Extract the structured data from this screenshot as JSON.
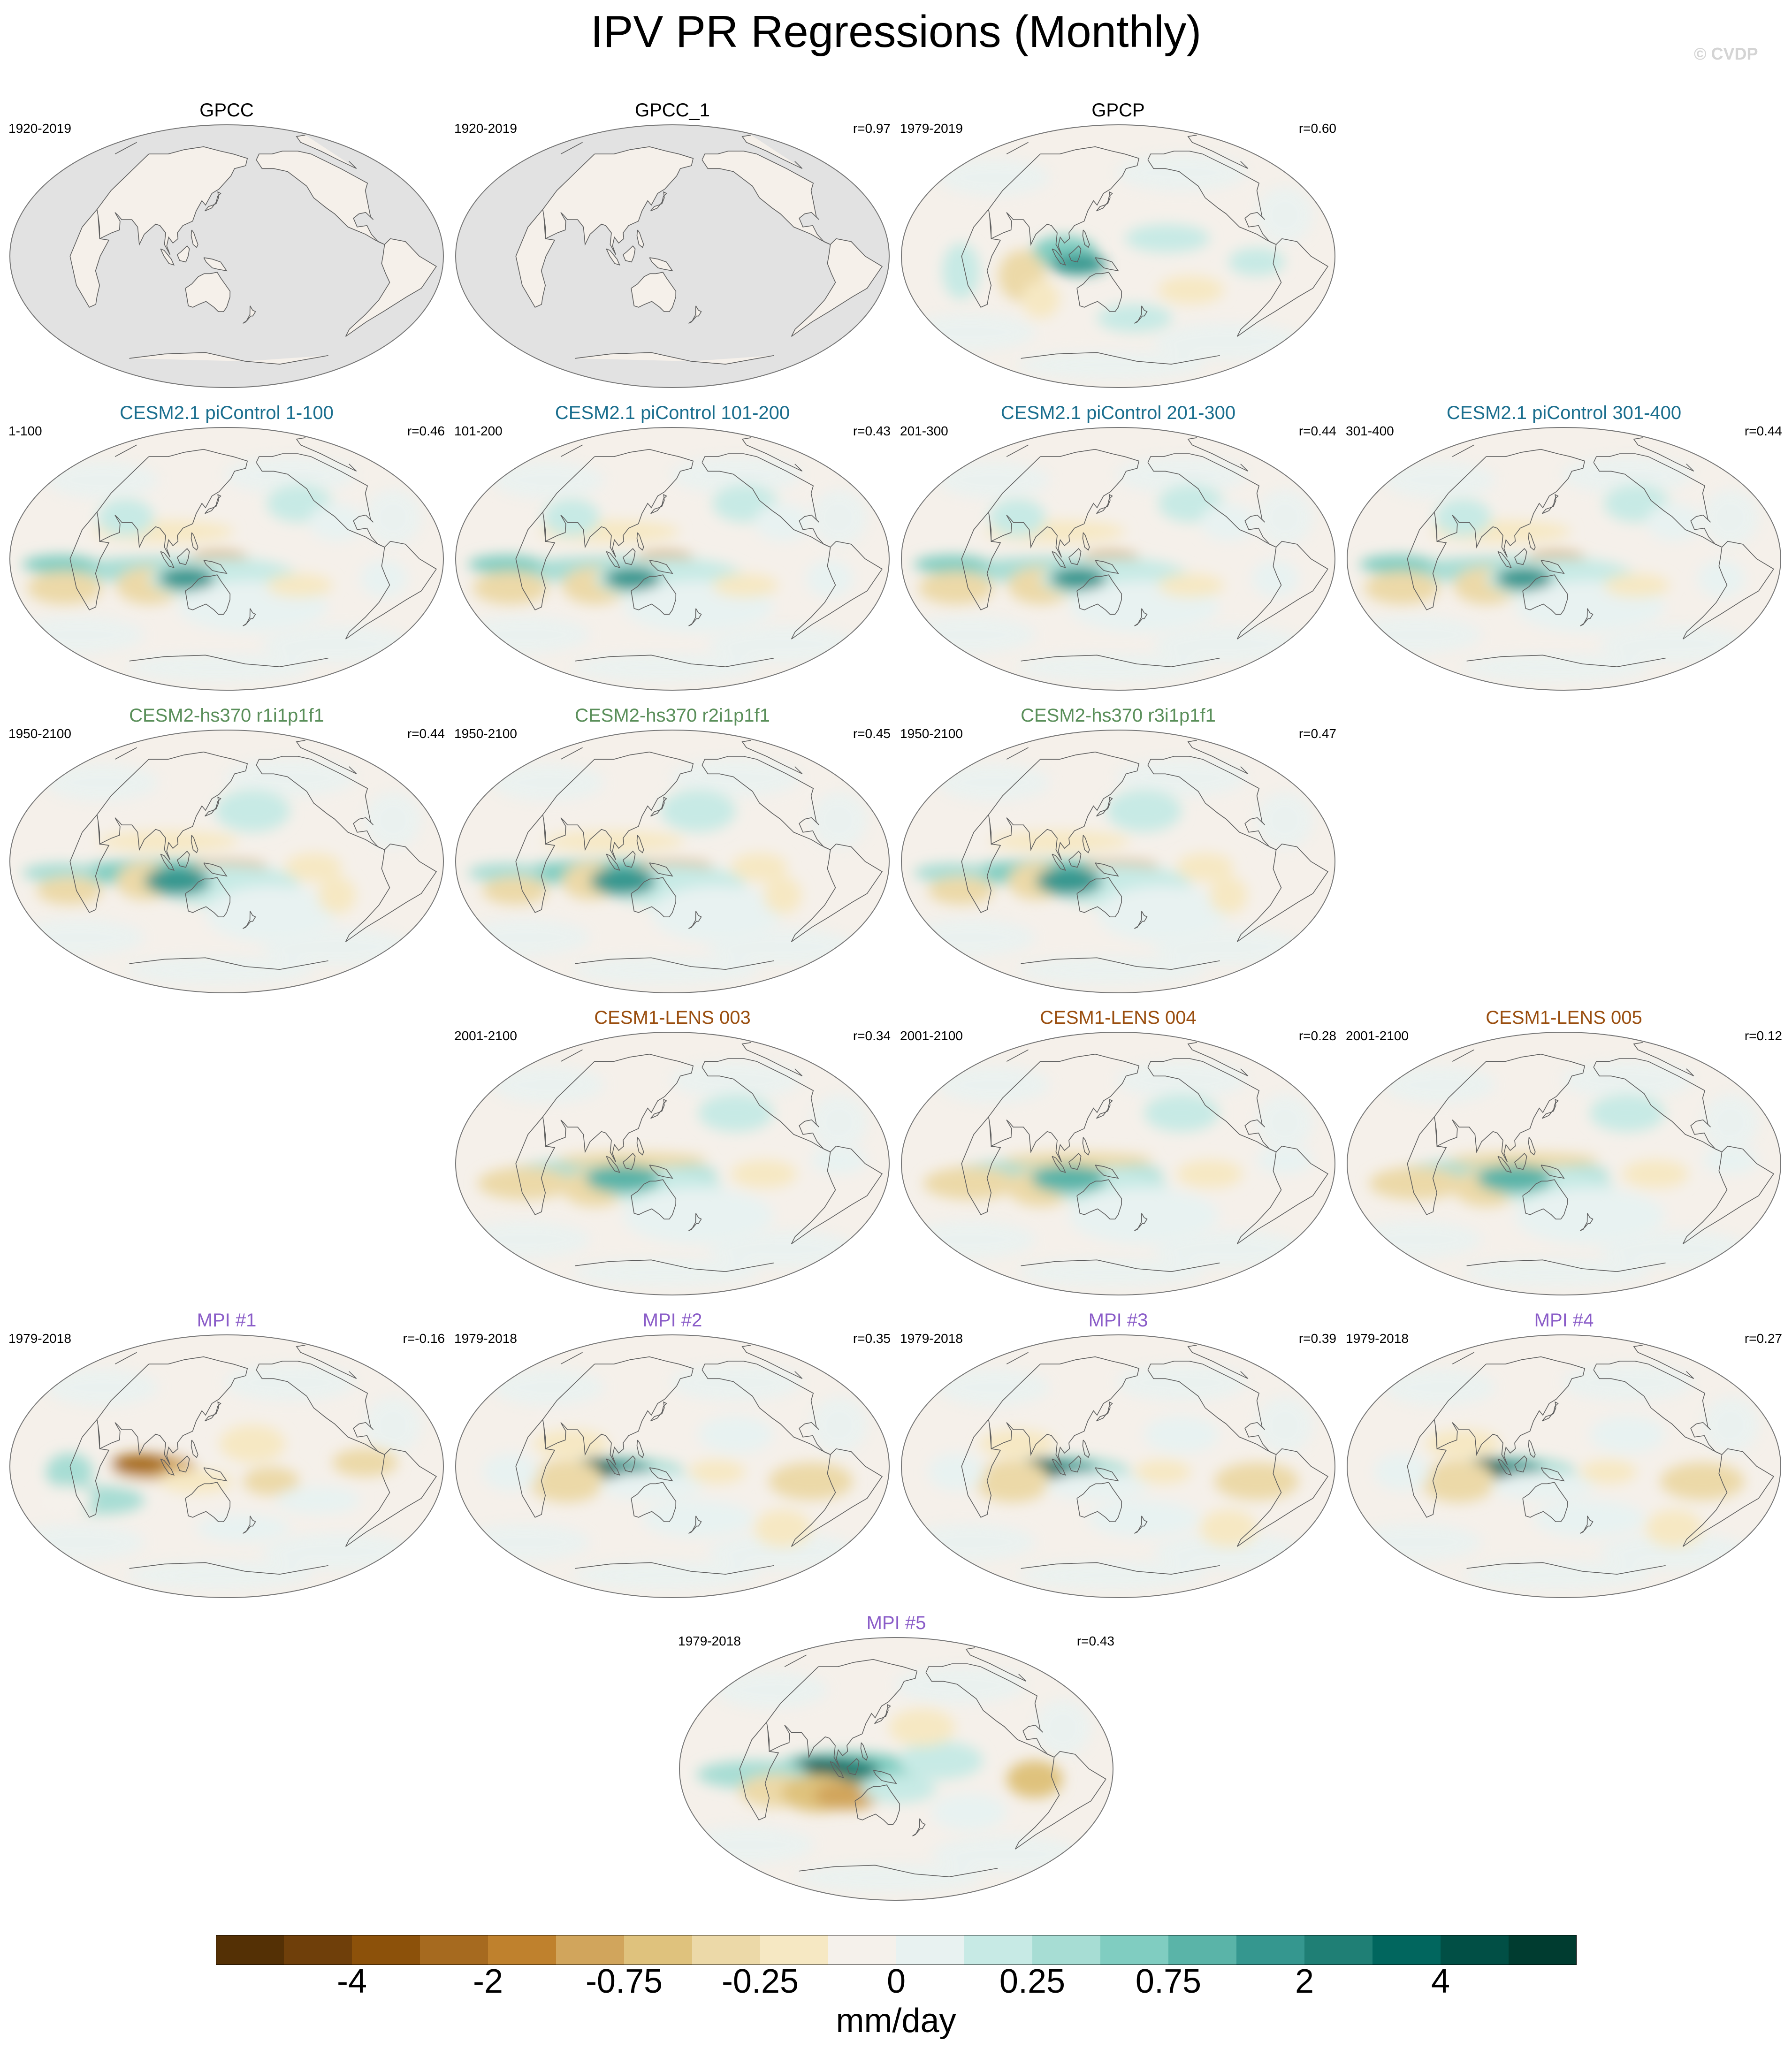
{
  "title": "IPV PR Regressions (Monthly)",
  "copyright": "© CVDP",
  "colors": {
    "land_mask": "#e2e2e2",
    "ocean_base": "#f5f0ea",
    "obs_title": "#000000",
    "cesm21_title": "#1a6e8e",
    "hs370_title": "#5a8f5a",
    "lens_title": "#9a4e0f",
    "mpi_title": "#8a5cc8",
    "coastline": "#5e5e5e"
  },
  "panels": [
    {
      "title": "GPCC",
      "years": "1920-2019",
      "r": "",
      "group": "obs",
      "masked": true,
      "pattern": 0
    },
    {
      "title": "GPCC_1",
      "years": "1920-2019",
      "r": "r=0.97",
      "group": "obs",
      "masked": true,
      "pattern": 0
    },
    {
      "title": "GPCP",
      "years": "1979-2019",
      "r": "r=0.60",
      "group": "obs",
      "masked": false,
      "pattern": 1
    },
    {
      "title": "CESM2.1 piControl 1-100",
      "years": "1-100",
      "r": "r=0.46",
      "group": "cesm21",
      "masked": false,
      "pattern": 2
    },
    {
      "title": "CESM2.1 piControl 101-200",
      "years": "101-200",
      "r": "r=0.43",
      "group": "cesm21",
      "masked": false,
      "pattern": 2
    },
    {
      "title": "CESM2.1 piControl 201-300",
      "years": "201-300",
      "r": "r=0.44",
      "group": "cesm21",
      "masked": false,
      "pattern": 2
    },
    {
      "title": "CESM2.1 piControl 301-400",
      "years": "301-400",
      "r": "r=0.44",
      "group": "cesm21",
      "masked": false,
      "pattern": 2
    },
    {
      "title": "CESM2-hs370 r1i1p1f1",
      "years": "1950-2100",
      "r": "r=0.44",
      "group": "hs370",
      "masked": false,
      "pattern": 3
    },
    {
      "title": "CESM2-hs370 r2i1p1f1",
      "years": "1950-2100",
      "r": "r=0.45",
      "group": "hs370",
      "masked": false,
      "pattern": 3
    },
    {
      "title": "CESM2-hs370 r3i1p1f1",
      "years": "1950-2100",
      "r": "r=0.47",
      "group": "hs370",
      "masked": false,
      "pattern": 3
    },
    {
      "title": "CESM1-LENS 003",
      "years": "2001-2100",
      "r": "r=0.34",
      "group": "lens",
      "masked": false,
      "pattern": 4
    },
    {
      "title": "CESM1-LENS 004",
      "years": "2001-2100",
      "r": "r=0.28",
      "group": "lens",
      "masked": false,
      "pattern": 4
    },
    {
      "title": "CESM1-LENS 005",
      "years": "2001-2100",
      "r": "r=0.12",
      "group": "lens",
      "masked": false,
      "pattern": 4
    },
    {
      "title": "MPI #1",
      "years": "1979-2018",
      "r": "r=-0.16",
      "group": "mpi",
      "masked": false,
      "pattern": 5
    },
    {
      "title": "MPI #2",
      "years": "1979-2018",
      "r": "r=0.35",
      "group": "mpi",
      "masked": false,
      "pattern": 6
    },
    {
      "title": "MPI #3",
      "years": "1979-2018",
      "r": "r=0.39",
      "group": "mpi",
      "masked": false,
      "pattern": 6
    },
    {
      "title": "MPI #4",
      "years": "1979-2018",
      "r": "r=0.27",
      "group": "mpi",
      "masked": false,
      "pattern": 6
    },
    {
      "title": "MPI #5",
      "years": "1979-2018",
      "r": "r=0.43",
      "group": "mpi",
      "masked": false,
      "pattern": 7
    }
  ],
  "colorbar": {
    "units": "mm/day",
    "colors": [
      "#543005",
      "#6f3f0a",
      "#8c510a",
      "#a66a1f",
      "#bf812d",
      "#d1a55c",
      "#dfc27d",
      "#ecd9a8",
      "#f6e8c3",
      "#f5f1eb",
      "#e8f2f1",
      "#c7eae5",
      "#a7ddd4",
      "#80cdc1",
      "#5ab4a8",
      "#35978f",
      "#1f7f75",
      "#01665e",
      "#014f45",
      "#003c30"
    ],
    "tick_labels": [
      "-4",
      "-2",
      "-0.75",
      "-0.25",
      "0",
      "0.25",
      "0.75",
      "2",
      "4"
    ]
  }
}
